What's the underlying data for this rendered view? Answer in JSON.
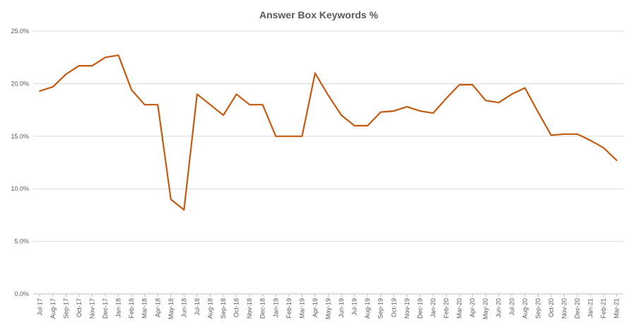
{
  "chart_data": {
    "type": "line",
    "title": "Answer Box Keywords %",
    "xlabel": "",
    "ylabel": "",
    "ylim": [
      0,
      25
    ],
    "yticks": [
      0,
      5,
      10,
      15,
      20,
      25
    ],
    "ytick_labels": [
      "0.0%",
      "5.0%",
      "10.0%",
      "15.0%",
      "20.0%",
      "25.0%"
    ],
    "grid": true,
    "legend": "none",
    "categories": [
      "Jul-17",
      "Aug-17",
      "Sep-17",
      "Oct-17",
      "Nov-17",
      "Dec-17",
      "Jan-18",
      "Feb-18",
      "Mar-18",
      "Apr-18",
      "May-18",
      "Jun-18",
      "Jul-18",
      "Aug-18",
      "Sep-18",
      "Oct-18",
      "Nov-18",
      "Dec-18",
      "Jan-19",
      "Feb-19",
      "Mar-19",
      "Apr-19",
      "May-19",
      "Jun-19",
      "Jul-19",
      "Aug-19",
      "Sep-19",
      "Oct-19",
      "Nov-19",
      "Dec-19",
      "Jan-20",
      "Feb-20",
      "Mar-20",
      "Apr-20",
      "May-20",
      "Jun-20",
      "Jul-20",
      "Aug-20",
      "Sep-20",
      "Oct-20",
      "Nov-20",
      "Dec-20",
      "Jan-21",
      "Feb-21",
      "Mar-21"
    ],
    "series": [
      {
        "color": "#c55a11",
        "values": [
          19.3,
          19.7,
          20.9,
          21.7,
          21.7,
          22.5,
          22.7,
          19.4,
          18.0,
          18.0,
          9.0,
          8.0,
          19.0,
          18.0,
          17.0,
          19.0,
          18.0,
          18.0,
          15.0,
          15.0,
          15.0,
          21.0,
          18.9,
          17.0,
          16.0,
          16.0,
          17.3,
          17.4,
          17.8,
          17.4,
          17.2,
          18.6,
          19.9,
          19.9,
          18.4,
          18.2,
          19.0,
          19.6,
          17.3,
          15.1,
          15.2,
          15.2,
          14.6,
          13.9,
          12.7
        ]
      }
    ]
  }
}
